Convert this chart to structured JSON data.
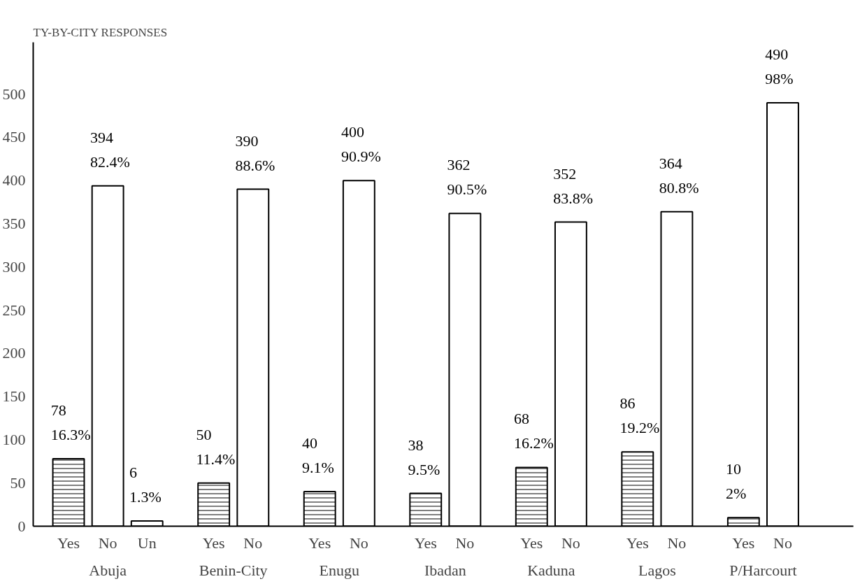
{
  "chart_data": {
    "type": "bar",
    "title": "TY-BY-CITY RESPONSES",
    "categories": [
      "Abuja",
      "Benin-City",
      "Enugu",
      "Ibadan",
      "Kaduna",
      "Lagos",
      "P/Harcourt"
    ],
    "series": [
      {
        "name": "Yes",
        "color": "#ffffff",
        "values": [
          78,
          50,
          40,
          38,
          68,
          86,
          10
        ],
        "value_labels": [
          "78\n16.3%",
          "50\n11.4%",
          "40\n9.1%",
          "38\n9.5%",
          "68\n16.2%",
          "86\n19.2%",
          "10\n2%"
        ]
      },
      {
        "name": "No",
        "color": "#ffffff",
        "values": [
          394,
          390,
          400,
          362,
          352,
          364,
          490
        ],
        "value_labels": [
          "394\n82.4%",
          "390\n88.6%",
          "400\n90.9%",
          "362\n90.5%",
          "352\n83.8%",
          "364\n80.8%",
          "490\n98%"
        ]
      },
      {
        "name": "Un",
        "color": "#ffffff",
        "values": [
          6,
          null,
          null,
          null,
          null,
          null,
          null
        ],
        "value_labels": [
          "6\n1.3%",
          null,
          null,
          null,
          null,
          null,
          null
        ]
      }
    ],
    "ylim": [
      0,
      560
    ],
    "yticks": [
      0,
      50,
      100,
      150,
      200,
      250,
      300,
      350,
      400,
      450,
      500
    ],
    "grid": false
  }
}
